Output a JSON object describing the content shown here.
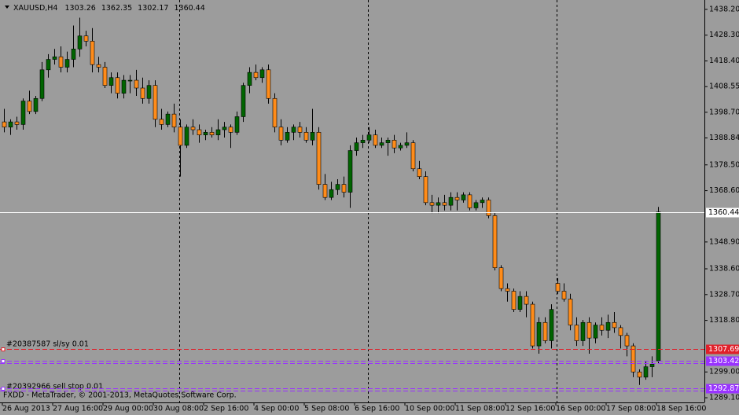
{
  "chart_data": {
    "type": "candlestick",
    "symbol": "XAUUSD,H4",
    "ohlc": [
      1303.26,
      1362.35,
      1302.17,
      1360.44
    ],
    "footer": "FXDD - MetaTrader, © 2001-2013, MetaQuotes Software Corp.",
    "order_labels": [
      "#20387587 sl/sy 0.01",
      "#20392966 sell stop 0.01"
    ],
    "categories": [
      "26 Aug 2013",
      null,
      null,
      null,
      null,
      null,
      null,
      null,
      "27 Aug 16:00",
      null,
      null,
      null,
      null,
      null,
      null,
      null,
      "29 Aug 00:00",
      null,
      null,
      null,
      null,
      null,
      null,
      null,
      "30 Aug 08:00",
      null,
      null,
      null,
      null,
      null,
      null,
      null,
      "2 Sep 16:00",
      null,
      null,
      null,
      null,
      null,
      null,
      null,
      "4 Sep 00:00",
      null,
      null,
      null,
      null,
      null,
      null,
      null,
      "5 Sep 08:00",
      null,
      null,
      null,
      null,
      null,
      null,
      null,
      "6 Sep 16:00",
      null,
      null,
      null,
      null,
      null,
      null,
      null,
      "10 Sep 00:00",
      null,
      null,
      null,
      null,
      null,
      null,
      null,
      "11 Sep 08:00",
      null,
      null,
      null,
      null,
      null,
      null,
      null,
      "12 Sep 16:00",
      null,
      null,
      null,
      null,
      null,
      null,
      null,
      "16 Sep 00:00",
      null,
      null,
      null,
      null,
      null,
      null,
      null,
      "17 Sep 08:00",
      null,
      null,
      null,
      null,
      null,
      null,
      null,
      "18 Sep 16:00"
    ],
    "open": [
      1395,
      1393,
      1395,
      1394,
      1403,
      1399,
      1404,
      1415,
      1419,
      1420,
      1416,
      1419,
      1423,
      1428,
      1426,
      1417,
      1416,
      1409,
      1412,
      1406,
      1411,
      1411,
      1408,
      1404,
      1409,
      1396,
      1394,
      1398,
      1393,
      1386,
      1393,
      1392,
      1390,
      1391,
      1390,
      1392,
      1393,
      1391,
      1397,
      1409,
      1414,
      1412,
      1415,
      1404,
      1393,
      1388,
      1391,
      1393,
      1391,
      1388,
      1391,
      1371,
      1366,
      1369,
      1371,
      1368,
      1384,
      1387,
      1388,
      1390,
      1386,
      1387,
      1388,
      1385,
      1386,
      1387,
      1377,
      1374,
      1364,
      1363,
      1364,
      1363,
      1366,
      1365,
      1367,
      1362,
      1364,
      1365,
      1359,
      1339,
      1331,
      1330,
      1323,
      1328,
      1325,
      1309,
      1318,
      1311,
      1333,
      1330,
      1327,
      1317,
      1311,
      1318,
      1312,
      1317,
      1315,
      1318,
      1316,
      1313,
      1309,
      1299,
      1297,
      1301,
      1303.26
    ],
    "high": [
      1400,
      1396,
      1397,
      1404,
      1407,
      1405,
      1418,
      1421,
      1423,
      1424,
      1422,
      1432,
      1435,
      1430,
      1431,
      1420,
      1418,
      1414,
      1414,
      1413,
      1413,
      1415,
      1412,
      1411,
      1411,
      1400,
      1399,
      1402,
      1396,
      1394,
      1396,
      1394,
      1392,
      1393,
      1396,
      1395,
      1394,
      1399,
      1410,
      1416,
      1417,
      1416,
      1417,
      1406,
      1396,
      1393,
      1394,
      1395,
      1393,
      1400,
      1393,
      1375,
      1372,
      1373,
      1374,
      1386,
      1389,
      1390,
      1393,
      1392,
      1389,
      1389,
      1390,
      1387,
      1391,
      1388,
      1380,
      1376,
      1367,
      1366,
      1367,
      1368,
      1368,
      1368,
      1368,
      1365,
      1366,
      1366,
      1360,
      1340,
      1333,
      1331,
      1330,
      1330,
      1326,
      1320,
      1320,
      1325,
      1335,
      1333,
      1329,
      1320,
      1319,
      1320,
      1318,
      1320,
      1321,
      1322,
      1317,
      1314,
      1310,
      1300,
      1303,
      1305,
      1362.35
    ],
    "low": [
      1391,
      1390,
      1392,
      1392,
      1398,
      1398,
      1403,
      1412,
      1417,
      1414,
      1414,
      1416,
      1420,
      1424,
      1414,
      1414,
      1408,
      1406,
      1404,
      1404,
      1406,
      1405,
      1402,
      1402,
      1393,
      1392,
      1393,
      1391,
      1374,
      1385,
      1390,
      1387,
      1388,
      1389,
      1388,
      1389,
      1385,
      1390,
      1395,
      1406,
      1411,
      1410,
      1402,
      1391,
      1386,
      1387,
      1388,
      1389,
      1387,
      1386,
      1369,
      1365,
      1365,
      1367,
      1366,
      1362,
      1382,
      1385,
      1387,
      1385,
      1385,
      1382,
      1383,
      1384,
      1385,
      1376,
      1373,
      1363,
      1360,
      1360,
      1361,
      1361,
      1361,
      1364,
      1361,
      1361,
      1362,
      1358,
      1338,
      1330,
      1326,
      1322,
      1322,
      1320,
      1308,
      1306,
      1310,
      1308,
      1329,
      1326,
      1315,
      1309,
      1309,
      1306,
      1310,
      1313,
      1312,
      1314,
      1308,
      1305,
      1297,
      1294,
      1296,
      1297,
      1302.17
    ],
    "close": [
      1393,
      1395,
      1394,
      1403,
      1399,
      1404,
      1415,
      1419,
      1420,
      1416,
      1419,
      1423,
      1428,
      1426,
      1417,
      1416,
      1409,
      1412,
      1406,
      1411,
      1411,
      1408,
      1404,
      1409,
      1396,
      1394,
      1398,
      1393,
      1386,
      1393,
      1392,
      1390,
      1391,
      1390,
      1392,
      1393,
      1391,
      1397,
      1409,
      1414,
      1412,
      1415,
      1404,
      1393,
      1388,
      1391,
      1393,
      1391,
      1388,
      1391,
      1371,
      1366,
      1369,
      1371,
      1368,
      1384,
      1387,
      1388,
      1390,
      1386,
      1387,
      1388,
      1385,
      1386,
      1387,
      1377,
      1374,
      1364,
      1363,
      1364,
      1363,
      1366,
      1365,
      1367,
      1362,
      1364,
      1365,
      1359,
      1339,
      1331,
      1330,
      1323,
      1328,
      1325,
      1309,
      1318,
      1311,
      1323,
      1330,
      1327,
      1317,
      1311,
      1318,
      1312,
      1317,
      1315,
      1318,
      1316,
      1313,
      1309,
      1299,
      1297,
      1301,
      1302,
      1360.44
    ],
    "up_color": "#006400",
    "down_color": "#ff8c1a",
    "levels": [
      {
        "value": 1360.44,
        "color": "#ffffff"
      },
      {
        "value": 1307.69,
        "color": "#e0202a"
      },
      {
        "value": 1303.42,
        "color": "#9933ff"
      },
      {
        "value": 1292.87,
        "color": "#9933ff"
      }
    ],
    "ylim": [
      1287.3,
      1441.8
    ],
    "yticks": [
      {
        "value": 1438.2,
        "label": "1438.20"
      },
      {
        "value": 1428.3,
        "label": "1428.30"
      },
      {
        "value": 1418.4,
        "label": "1418.40"
      },
      {
        "value": 1408.55,
        "label": "1408.55"
      },
      {
        "value": 1398.7,
        "label": "1398.70"
      },
      1388.84,
      {
        "value": 1378.5,
        "label": "1378.50"
      },
      {
        "value": 1368.6,
        "label": "1368.60"
      },
      {
        "value": 1348.9,
        "label": "1348.90"
      },
      {
        "value": 1338.6,
        "label": "1338.60"
      },
      {
        "value": 1328.7,
        "label": "1328.70"
      },
      {
        "value": 1318.8,
        "label": "1318.80"
      },
      {
        "value": 1299,
        "label": "1299.00"
      },
      {
        "value": 1289.1,
        "label": "1289.10"
      }
    ]
  }
}
